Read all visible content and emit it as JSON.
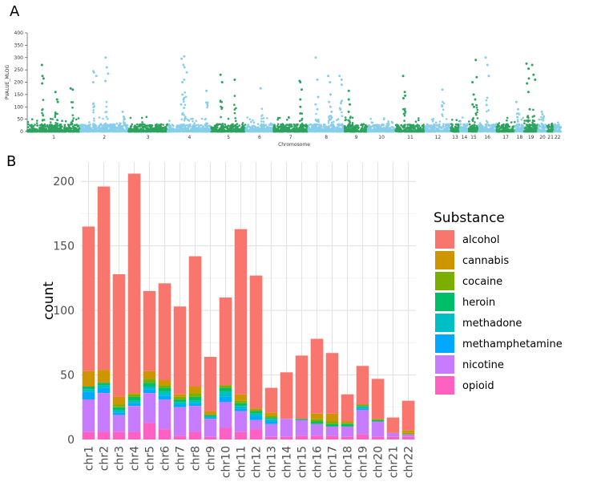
{
  "panel_a_label": "A",
  "panel_b_label": "B",
  "chart_data": [
    {
      "type": "scatter",
      "title": "",
      "ylabel": "PVALUE_MLOG",
      "xlabel": "Chromosome",
      "ylim": [
        0,
        400
      ],
      "yticks": [
        0,
        50,
        100,
        150,
        200,
        250,
        300,
        350,
        400
      ],
      "chromosomes": [
        "1",
        "2",
        "3",
        "4",
        "5",
        "6",
        "7",
        "8",
        "9",
        "10",
        "11",
        "12",
        "13",
        "14",
        "15",
        "16",
        "17",
        "18",
        "19",
        "20",
        "21",
        "22"
      ],
      "colors": [
        "#2ca25f",
        "#87ceeb"
      ],
      "x_min": 0,
      "x_max": 100,
      "chromosome_spans": [
        [
          0,
          11.5
        ],
        [
          11.5,
          22
        ],
        [
          22,
          30.5
        ],
        [
          30.5,
          40
        ],
        [
          40,
          47.5
        ],
        [
          47.5,
          53.5
        ],
        [
          53.5,
          61
        ],
        [
          61,
          69
        ],
        [
          69,
          74
        ],
        [
          74,
          80
        ],
        [
          80,
          86.5
        ],
        [
          86.5,
          92
        ],
        [
          92,
          94
        ],
        [
          94,
          96
        ],
        [
          96,
          98
        ],
        [
          98,
          102
        ],
        [
          102,
          106
        ],
        [
          106,
          108
        ],
        [
          108,
          111
        ],
        [
          111,
          113
        ],
        [
          113,
          114.5
        ],
        [
          114.5,
          116
        ]
      ],
      "peaks": [
        {
          "chr": "1",
          "pos": 0.3,
          "values": [
            270,
            225,
            215,
            195
          ]
        },
        {
          "chr": "1",
          "pos": 0.55,
          "values": [
            160,
            130,
            120
          ]
        },
        {
          "chr": "1",
          "pos": 0.85,
          "values": [
            175,
            170
          ]
        },
        {
          "chr": "2",
          "pos": 0.3,
          "values": [
            245,
            240,
            225,
            200
          ]
        },
        {
          "chr": "2",
          "pos": 0.55,
          "values": [
            300,
            260,
            235,
            205
          ]
        },
        {
          "chr": "2",
          "pos": 0.9,
          "values": [
            80,
            60
          ]
        },
        {
          "chr": "4",
          "pos": 0.35,
          "values": [
            295,
            270,
            210,
            200,
            150,
            130,
            110
          ]
        },
        {
          "chr": "4",
          "pos": 0.4,
          "values": [
            305,
            260,
            240
          ]
        },
        {
          "chr": "4",
          "pos": 0.9,
          "values": [
            165
          ]
        },
        {
          "chr": "5",
          "pos": 0.3,
          "values": [
            230,
            200
          ]
        },
        {
          "chr": "5",
          "pos": 0.7,
          "values": [
            210
          ]
        },
        {
          "chr": "6",
          "pos": 0.6,
          "values": [
            175
          ]
        },
        {
          "chr": "7",
          "pos": 0.8,
          "values": [
            205,
            200,
            170,
            130,
            100
          ]
        },
        {
          "chr": "8",
          "pos": 0.25,
          "values": [
            300,
            210,
            140,
            110,
            90
          ]
        },
        {
          "chr": "8",
          "pos": 0.6,
          "values": [
            225,
            200,
            150,
            120,
            100,
            80
          ]
        },
        {
          "chr": "8",
          "pos": 0.9,
          "values": [
            225,
            210,
            190
          ]
        },
        {
          "chr": "9",
          "pos": 0.2,
          "values": [
            165,
            130,
            110,
            80
          ]
        },
        {
          "chr": "11",
          "pos": 0.3,
          "values": [
            225,
            160,
            145,
            135
          ]
        },
        {
          "chr": "12",
          "pos": 0.7,
          "values": [
            170
          ]
        },
        {
          "chr": "15",
          "pos": 0.5,
          "values": [
            200,
            150,
            130,
            110,
            100
          ]
        },
        {
          "chr": "15",
          "pos": 0.8,
          "values": [
            290,
            220
          ]
        },
        {
          "chr": "16",
          "pos": 0.5,
          "values": [
            300,
            270,
            225
          ]
        },
        {
          "chr": "18",
          "pos": 0.3,
          "values": [
            120,
            90
          ]
        },
        {
          "chr": "19",
          "pos": 0.3,
          "values": [
            275,
            255,
            215,
            195,
            160,
            90
          ]
        },
        {
          "chr": "19",
          "pos": 0.7,
          "values": [
            270,
            230,
            210
          ]
        },
        {
          "chr": "20",
          "pos": 0.5,
          "values": [
            80,
            70
          ]
        }
      ]
    },
    {
      "type": "bar",
      "stacked": true,
      "title": "",
      "xlabel": "",
      "ylabel": "count",
      "ylim": [
        0,
        215
      ],
      "yticks": [
        0,
        50,
        100,
        150,
        200
      ],
      "legend_title": "Substance",
      "legend_position": "right",
      "categories": [
        "chr1",
        "chr2",
        "chr3",
        "chr4",
        "chr5",
        "chr6",
        "chr7",
        "chr8",
        "chr9",
        "chr10",
        "chr11",
        "chr12",
        "chr13",
        "chr14",
        "chr15",
        "chr16",
        "chr17",
        "chr18",
        "chr19",
        "chr20",
        "chr21",
        "chr22"
      ],
      "series": [
        {
          "name": "opioid",
          "color": "#ff61c3",
          "values": [
            6,
            6,
            6,
            6,
            13,
            8,
            3,
            6,
            2,
            9,
            6,
            8,
            2,
            2,
            3,
            3,
            3,
            2,
            4,
            2,
            2,
            2
          ]
        },
        {
          "name": "nicotine",
          "color": "#c77cff",
          "values": [
            25,
            30,
            13,
            20,
            23,
            23,
            22,
            20,
            14,
            20,
            16,
            7,
            10,
            14,
            12,
            9,
            7,
            8,
            19,
            12,
            3,
            2
          ]
        },
        {
          "name": "methamphetamine",
          "color": "#00a9ff",
          "values": [
            6,
            4,
            2,
            2,
            3,
            3,
            2,
            2,
            1,
            4,
            2,
            3,
            2,
            0,
            0,
            0,
            0,
            0,
            1,
            0,
            0,
            0
          ]
        },
        {
          "name": "methadone",
          "color": "#00bfc4",
          "values": [
            2,
            2,
            2,
            2,
            2,
            3,
            2,
            2,
            1,
            4,
            2,
            2,
            2,
            0,
            0,
            0,
            0,
            0,
            1,
            0,
            0,
            0
          ]
        },
        {
          "name": "heroin",
          "color": "#00be67",
          "values": [
            2,
            2,
            2,
            3,
            3,
            3,
            2,
            3,
            1,
            3,
            2,
            2,
            1,
            0,
            1,
            2,
            2,
            2,
            1,
            1,
            0,
            0
          ]
        },
        {
          "name": "cocaine",
          "color": "#7cae00",
          "values": [
            0,
            0,
            2,
            2,
            3,
            2,
            2,
            3,
            0,
            2,
            2,
            1,
            1,
            0,
            0,
            2,
            2,
            1,
            1,
            1,
            0,
            1
          ]
        },
        {
          "name": "cannabis",
          "color": "#cd9600",
          "values": [
            12,
            10,
            6,
            1,
            6,
            4,
            2,
            5,
            3,
            0,
            5,
            1,
            3,
            0,
            0,
            4,
            6,
            1,
            0,
            0,
            0,
            2
          ]
        },
        {
          "name": "alcohol",
          "color": "#f8766d",
          "values": [
            112,
            142,
            95,
            170,
            62,
            75,
            68,
            101,
            42,
            68,
            128,
            103,
            19,
            36,
            49,
            58,
            47,
            21,
            30,
            31,
            12,
            23
          ]
        }
      ],
      "legend_order": [
        "alcohol",
        "cannabis",
        "cocaine",
        "heroin",
        "methadone",
        "methamphetamine",
        "nicotine",
        "opioid"
      ]
    }
  ]
}
